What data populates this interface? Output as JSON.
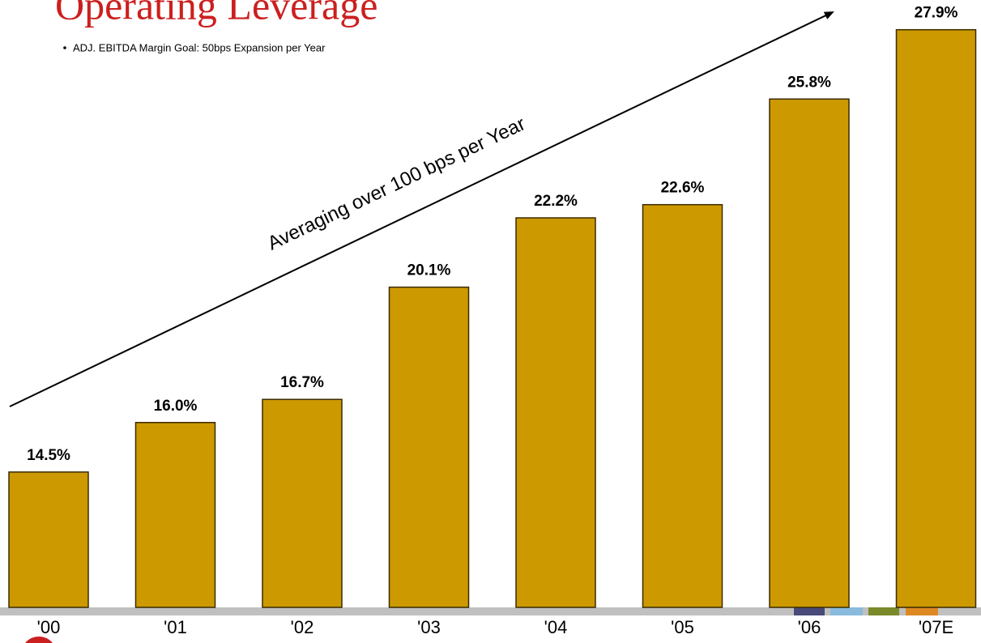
{
  "chart_data": {
    "type": "bar",
    "title": "Operating Leverage",
    "subtitle": "ADJ. EBITDA Margin Goal: 50bps Expansion per Year",
    "annotation": "Averaging over 100 bps per Year",
    "categories": [
      "'00",
      "'01",
      "'02",
      "'03",
      "'04",
      "'05",
      "'06",
      "'07E"
    ],
    "values": [
      14.5,
      16.0,
      16.7,
      20.1,
      22.2,
      22.6,
      25.8,
      27.9
    ],
    "value_labels": [
      "14.5%",
      "16.0%",
      "16.7%",
      "20.1%",
      "22.2%",
      "22.6%",
      "25.8%",
      "27.9%"
    ],
    "color": "#cc9900",
    "ylim": [
      10.4,
      28.8
    ]
  }
}
